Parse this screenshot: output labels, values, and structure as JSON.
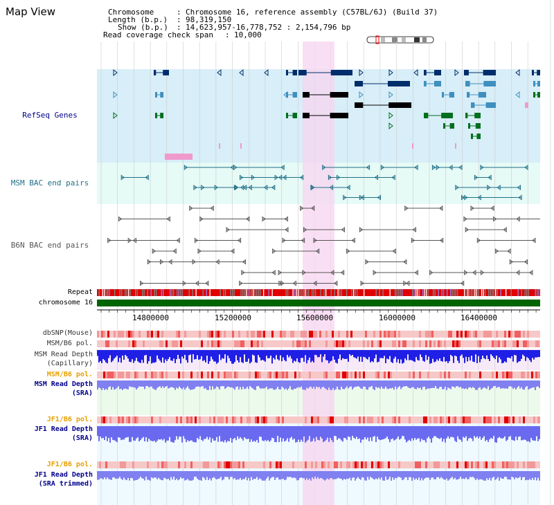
{
  "window": {
    "title": "Map View"
  },
  "header": {
    "chromosome_key": "Chromosome",
    "chromosome_val": "Chromosome 16, reference assembly (C57BL/6J) (Build 37)",
    "length_key": "Length (b.p.)",
    "length_val": "98,319,150",
    "show_key": "Show (b.p.)",
    "show_val": "14,623,957-16,778,752 : 2,154,796 bp",
    "span_key": "Read coverage check span",
    "span_val": "10,000"
  },
  "tracks": {
    "refseq": "RefSeq Genes",
    "msm_bac": "MSM BAC end pairs",
    "b6n_bac": "B6N BAC end pairs",
    "repeat": "Repeat",
    "chromosome": "chromosome 16",
    "dbsnp": "dbSNP(Mouse)",
    "msm_pol_1": "MSM/B6 pol.",
    "msm_depth_cap_1": "MSM Read Depth",
    "msm_depth_cap_2": "(Capillary)",
    "msm_pol_2": "MSM/B6 pol.",
    "msm_depth_sra_1": "MSM Read Depth",
    "msm_depth_sra_2": "(SRA)",
    "jf1_pol_1": "JF1/B6 pol.",
    "jf1_depth_sra_1": "JF1 Read Depth",
    "jf1_depth_sra_2": "(SRA)",
    "jf1_pol_2": "JF1/B6 pol.",
    "jf1_depth_trim_1": "JF1 Read Depth",
    "jf1_depth_trim_2": "(SRA trimmed)"
  },
  "axis": {
    "ticks": [
      "14800000",
      "15200000",
      "15600000",
      "16000000",
      "16400000"
    ]
  },
  "colors": {
    "refseq_bg": "#d8eef8",
    "msm_bac_bg": "#e6faf6",
    "label_blue": "#00008b",
    "label_teal": "#1f6f86",
    "label_orange": "#e6a000",
    "highlight": "#f7d4f0",
    "chromosome_bar": "#006400",
    "depth_blue": "#1f1fe6",
    "depth_light": "#8080f0"
  }
}
